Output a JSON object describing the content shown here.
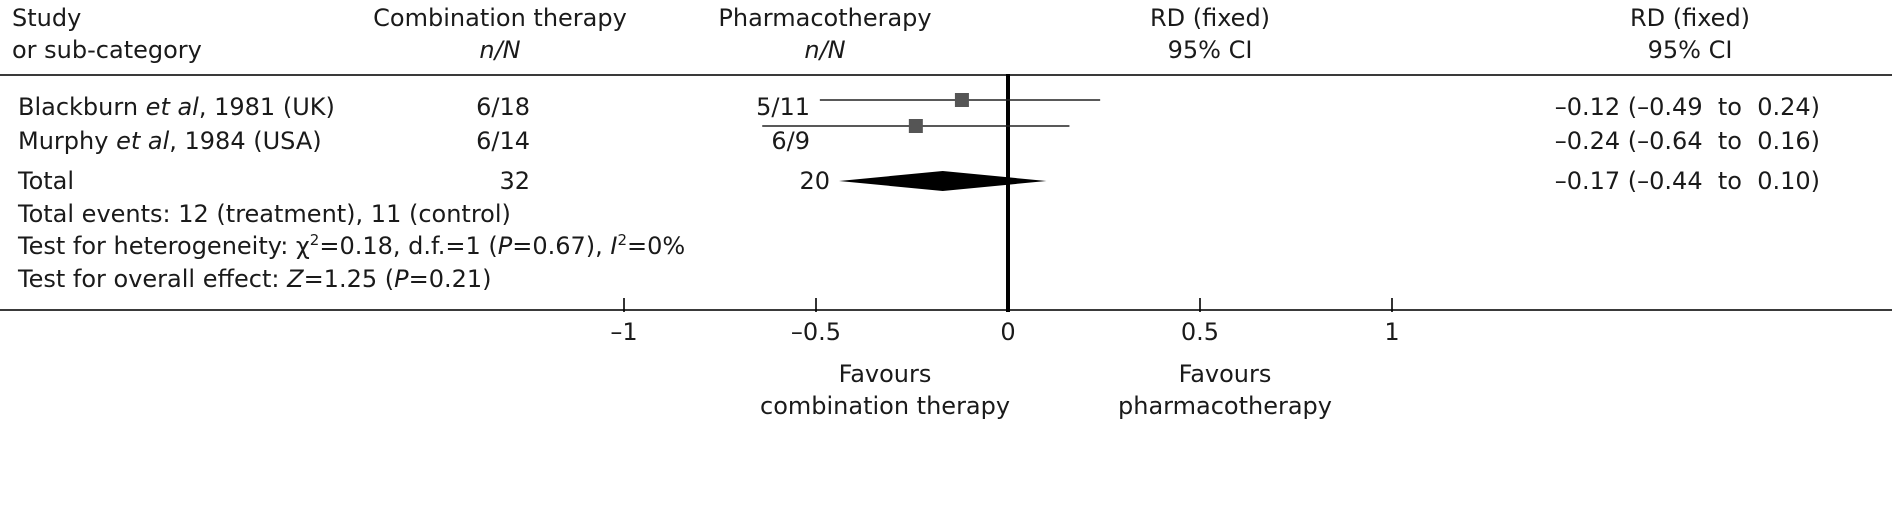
{
  "header": {
    "study_line1": "Study",
    "study_line2": "or sub-category",
    "treatment_line1": "Combination therapy",
    "control_line1": "Pharmacotherapy",
    "count_unit": "n/N",
    "effect_line1": "RD (fixed)",
    "effect_line2": "95% CI"
  },
  "total_row": {
    "label": "Total",
    "treatment_total": "32",
    "control_total": "20",
    "ci_text": "–0.17 (–0.44  to  0.10)"
  },
  "footnotes": {
    "events": "Total events: 12 (treatment), 11 (control)",
    "heterogeneity_prefix": "Test for heterogeneity: χ",
    "heterogeneity_sup": "2",
    "heterogeneity_mid": "=0.18, d.f.=1 (",
    "heterogeneity_p": "P",
    "heterogeneity_p_val": "=0.67), ",
    "heterogeneity_i": "I",
    "heterogeneity_i_sup": "2",
    "heterogeneity_i_val": "=0%",
    "overall_prefix": "Test for overall effect: ",
    "overall_z": "Z",
    "overall_z_val": "=1.25 (",
    "overall_p": "P",
    "overall_p_val": "=0.21)"
  },
  "axis": {
    "favours_left_line1": "Favours",
    "favours_left_line2": "combination therapy",
    "favours_right_line1": "Favours",
    "favours_right_line2": "pharmacotherapy"
  },
  "colors": {
    "square": "#555555",
    "diamond": "#000000",
    "line": "#222222"
  },
  "chart_data": {
    "type": "forest",
    "measure": "RD (fixed)",
    "xlim": [
      -1,
      1
    ],
    "ticks": [
      -1,
      -0.5,
      0,
      0.5,
      1
    ],
    "tick_labels": [
      "–1",
      "–0.5",
      "0",
      "0.5",
      "1"
    ],
    "studies": [
      {
        "name_pre": "Blackburn ",
        "name_italic": "et al",
        "name_post": ", 1981 (UK)",
        "treatment": "6/18",
        "control": "5/11",
        "rd": -0.12,
        "lo": -0.49,
        "hi": 0.24,
        "ci_text": "–0.12 (–0.49  to  0.24)"
      },
      {
        "name_pre": "Murphy ",
        "name_italic": "et al",
        "name_post": ", 1984 (USA)",
        "treatment": "6/14",
        "control": "6/9",
        "rd": -0.24,
        "lo": -0.64,
        "hi": 0.16,
        "ci_text": "–0.24 (–0.64  to  0.16)"
      }
    ],
    "pooled": {
      "rd": -0.17,
      "lo": -0.44,
      "hi": 0.1
    }
  }
}
